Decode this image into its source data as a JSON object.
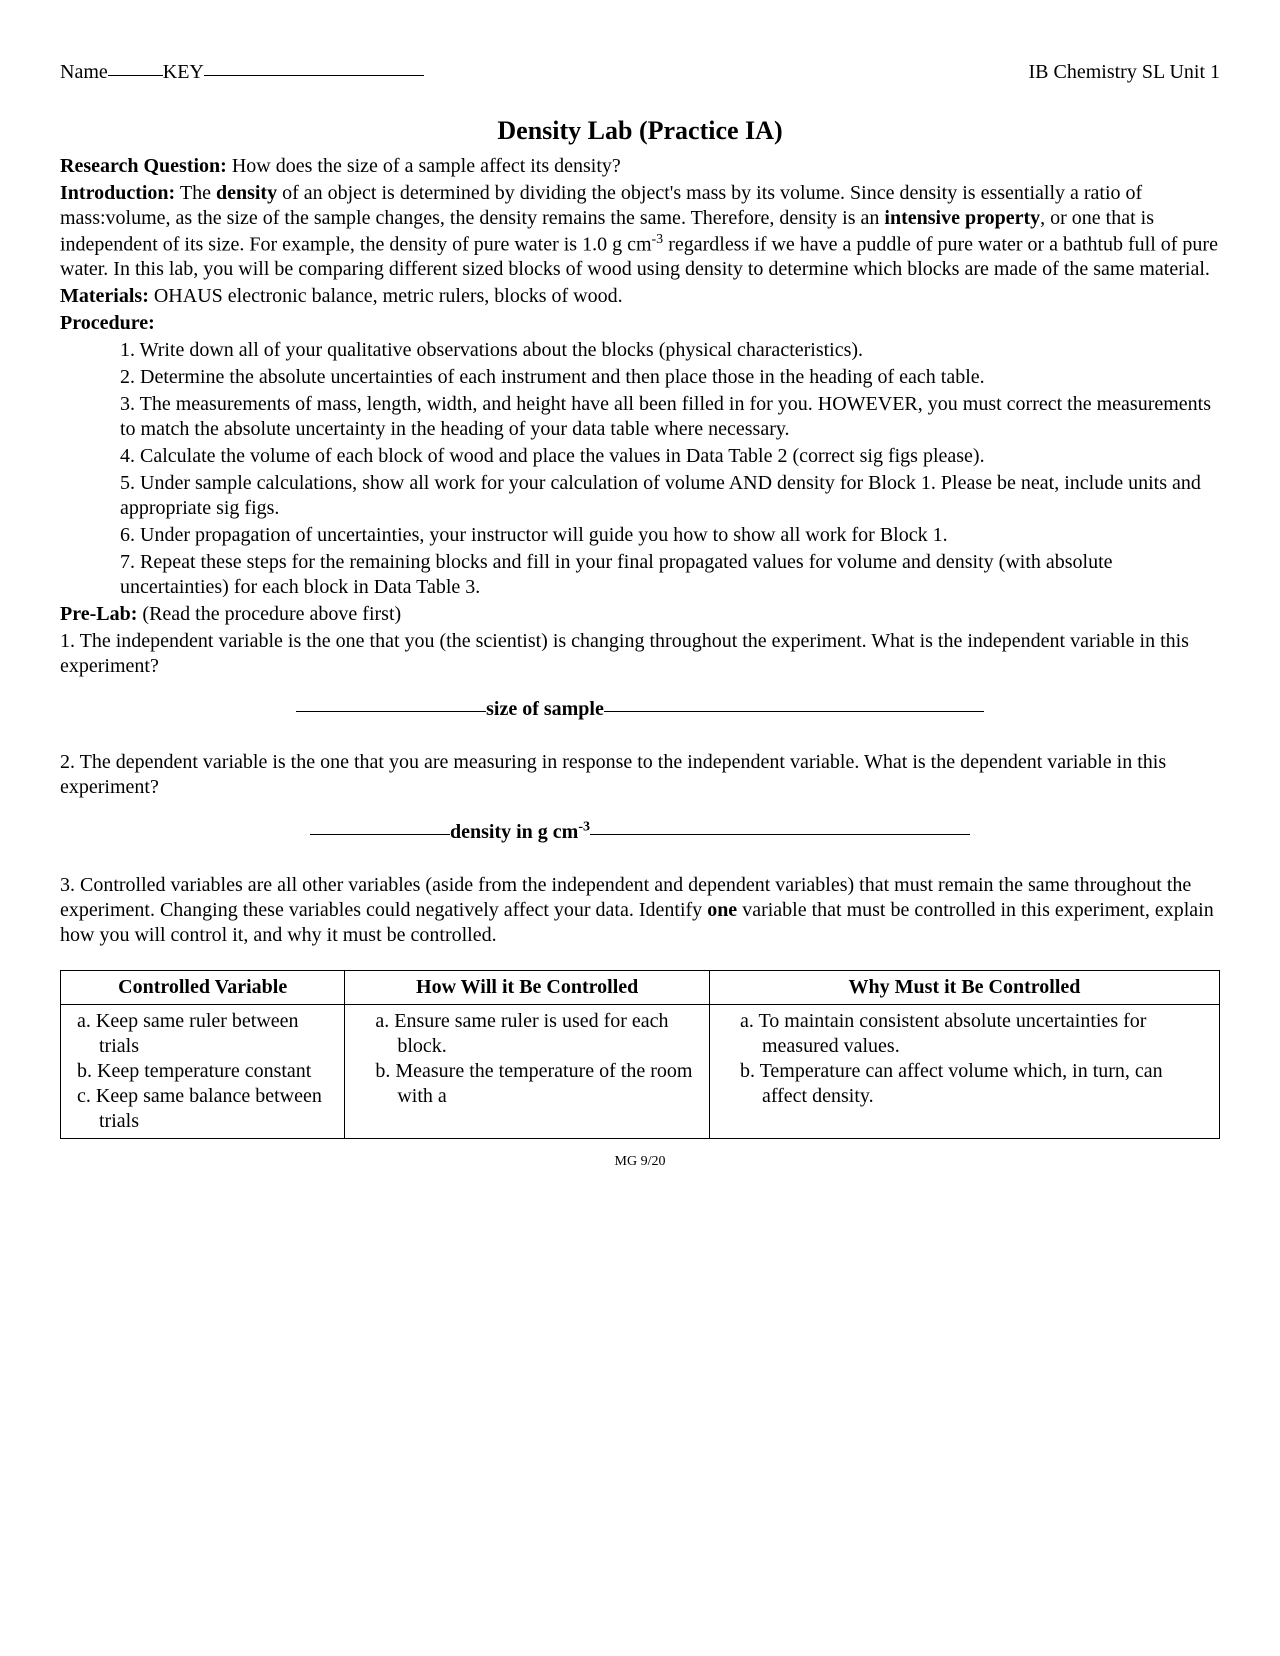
{
  "header": {
    "name_label": "Name",
    "key_text": "KEY",
    "course": "IB Chemistry SL Unit 1"
  },
  "title": "Density Lab (Practice IA)",
  "research_question": {
    "label": "Research Question:",
    "text": "  How does the size of a sample affect its density?"
  },
  "introduction": {
    "label": "Introduction:",
    "pre_density": "  The ",
    "density_word": "density",
    "post_density": " of an object is determined by dividing the object's mass by its volume.  Since density is essentially a ratio of mass:volume, as the size of the sample changes, the density remains the same.  Therefore, density is an ",
    "intensive_word": "intensive property",
    "post_intensive_a": ", or one that is independent of its size.  For example, the density of pure water is 1.0 g cm",
    "exp": "-3",
    "post_intensive_b": " regardless if we have a puddle of pure water or a bathtub full of pure water.  In this lab, you will be comparing different sized blocks of wood using density to determine which blocks are made of the same material."
  },
  "materials": {
    "label": "Materials:",
    "text": "  OHAUS electronic balance, metric rulers, blocks of wood."
  },
  "procedure": {
    "label": "Procedure:",
    "items": [
      "1.  Write down all of your qualitative observations about the blocks (physical characteristics).",
      "2.  Determine the absolute uncertainties of each instrument and then place those in the heading of each table.",
      "3.  The measurements of mass, length, width, and height have all been filled in for you.  HOWEVER, you must correct the measurements to match the absolute uncertainty in the heading of your data table where necessary.",
      "4.  Calculate the volume of each block of wood and place the values in Data Table 2 (correct sig figs please).",
      "5.  Under sample calculations, show all work for your calculation of volume AND density for Block 1.  Please be neat, include units and appropriate sig figs.",
      "6.  Under propagation of uncertainties, your instructor will guide you how to show all work for Block 1.",
      "7.  Repeat these steps for the remaining blocks and fill in your final propagated values for volume and density (with absolute uncertainties) for each block in Data Table 3."
    ]
  },
  "prelab": {
    "label": "Pre-Lab:",
    "note": "  (Read the procedure above first)",
    "q1": "1.  The independent variable is the one that you (the scientist) is changing throughout the experiment.  What is the independent variable in this experiment?",
    "a1": "size of sample",
    "q2": "2.  The dependent variable is the one that you are measuring in response to the independent variable.  What is the dependent variable in this experiment?",
    "a2_pre": "density in g cm",
    "a2_exp": "-3",
    "q3": "3.  Controlled variables are all other variables (aside from the independent and dependent variables) that must remain the same throughout the experiment.  Changing these variables could negatively affect your data.  Identify ",
    "q3_one": "one",
    "q3_post": " variable that must be controlled in this experiment, explain how you will control it, and why it must be controlled."
  },
  "table": {
    "headers": [
      "Controlled Variable",
      "How Will it Be Controlled",
      "Why Must it Be Controlled"
    ],
    "col1": [
      "a.   Keep same ruler between trials",
      "b.   Keep temperature constant",
      "c.   Keep same balance between trials"
    ],
    "col2": [
      "a.   Ensure same ruler is used for each block.",
      "b.   Measure the temperature of the room with a"
    ],
    "col3": [
      "a.   To maintain consistent absolute uncertainties for measured values.",
      "b.   Temperature can affect volume which, in turn, can affect density."
    ]
  },
  "footer": "MG 9/20"
}
